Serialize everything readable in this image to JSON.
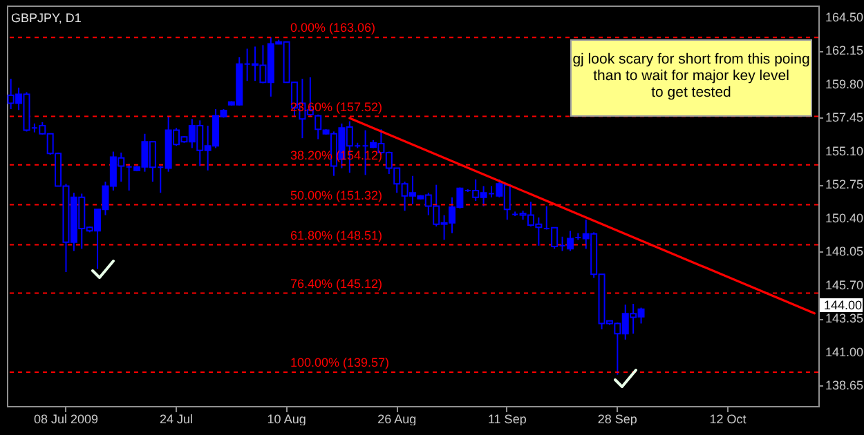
{
  "chart_data": {
    "type": "candlestick",
    "title": "GBPJPY, D1",
    "categories": [
      null,
      null,
      null,
      null,
      null,
      null,
      null,
      "08 Jul 2009",
      null,
      null,
      null,
      null,
      null,
      null,
      null,
      null,
      null,
      null,
      null,
      null,
      null,
      "24 Jul",
      null,
      null,
      null,
      null,
      null,
      null,
      null,
      null,
      null,
      null,
      null,
      null,
      null,
      "10 Aug",
      null,
      null,
      null,
      null,
      null,
      null,
      null,
      null,
      null,
      null,
      null,
      null,
      null,
      "26 Aug",
      null,
      null,
      null,
      null,
      null,
      null,
      null,
      null,
      null,
      null,
      null,
      null,
      null,
      "11 Sep",
      null,
      null,
      null,
      null,
      null,
      null,
      null,
      null,
      null,
      null,
      null,
      null,
      null,
      "28 Sep",
      null,
      null,
      null,
      null,
      null,
      null,
      null,
      null,
      null,
      null,
      null,
      null,
      null,
      "12 Oct",
      null,
      null,
      null,
      null,
      null,
      null,
      null,
      null,
      null,
      null,
      null
    ],
    "color": "#0000ff",
    "ohlc": [
      [
        159.0,
        160.16,
        158.03,
        158.44
      ],
      [
        158.44,
        159.54,
        157.97,
        159.07
      ],
      [
        159.07,
        159.22,
        156.46,
        156.55
      ],
      [
        156.71,
        157.02,
        156.4,
        156.71
      ],
      [
        156.87,
        157.12,
        156.24,
        156.3
      ],
      [
        156.3,
        156.3,
        154.83,
        154.92
      ],
      [
        154.92,
        154.98,
        152.63,
        152.63
      ],
      [
        152.63,
        152.79,
        146.6,
        148.7
      ],
      [
        148.7,
        152.16,
        148.08,
        151.84
      ],
      [
        151.84,
        152.1,
        148.23,
        149.65
      ],
      [
        149.74,
        149.8,
        149.39,
        149.49
      ],
      [
        149.49,
        151.0,
        146.82,
        151.0
      ],
      [
        151.0,
        152.94,
        150.59,
        152.63
      ],
      [
        152.63,
        155.05,
        152.32,
        154.67
      ],
      [
        154.61,
        154.98,
        152.94,
        154.04
      ],
      [
        153.98,
        154.2,
        152.32,
        153.98
      ],
      [
        153.73,
        154.04,
        153.67,
        153.98
      ],
      [
        153.98,
        156.3,
        153.64,
        155.74
      ],
      [
        155.74,
        155.74,
        152.94,
        153.95
      ],
      [
        153.95,
        154.04,
        152.16,
        153.95
      ],
      [
        153.89,
        157.5,
        153.64,
        156.55
      ],
      [
        156.55,
        156.71,
        155.45,
        155.55
      ],
      [
        156.08,
        156.14,
        155.67,
        155.74
      ],
      [
        155.74,
        157.34,
        155.3,
        156.87
      ],
      [
        156.87,
        157.24,
        154.04,
        155.14
      ],
      [
        155.14,
        156.87,
        153.73,
        155.45
      ],
      [
        155.45,
        158.03,
        155.3,
        157.56
      ],
      [
        157.5,
        158.03,
        157.43,
        157.94
      ],
      [
        158.34,
        158.59,
        158.28,
        158.53
      ],
      [
        158.34,
        161.67,
        158.28,
        161.2
      ],
      [
        161.2,
        162.27,
        160.01,
        161.2
      ],
      [
        161.2,
        162.42,
        160.01,
        161.11
      ],
      [
        161.11,
        162.52,
        159.85,
        159.91
      ],
      [
        159.91,
        163.06,
        158.91,
        162.61
      ],
      [
        162.61,
        162.9,
        162.58,
        162.74
      ],
      [
        162.74,
        162.74,
        159.91,
        159.91
      ],
      [
        159.91,
        159.91,
        157.56,
        158.12
      ],
      [
        158.44,
        160.16,
        155.99,
        157.34
      ],
      [
        157.97,
        160.26,
        157.5,
        157.65
      ],
      [
        157.56,
        157.65,
        155.92,
        156.62
      ],
      [
        156.3,
        156.62,
        156.24,
        156.55
      ],
      [
        156.3,
        156.46,
        153.35,
        154.04
      ],
      [
        154.51,
        157.02,
        153.89,
        156.71
      ],
      [
        156.77,
        157.18,
        153.57,
        155.45
      ],
      [
        155.45,
        155.67,
        155.3,
        155.45
      ],
      [
        155.45,
        156.55,
        153.41,
        155.45
      ],
      [
        155.36,
        155.86,
        155.3,
        155.67
      ],
      [
        155.61,
        156.62,
        154.83,
        154.98
      ],
      [
        154.98,
        155.05,
        153.48,
        153.89
      ],
      [
        153.89,
        153.89,
        152.16,
        152.79
      ],
      [
        152.79,
        152.94,
        150.9,
        151.94
      ],
      [
        151.94,
        153.35,
        151.37,
        152.16
      ],
      [
        151.75,
        152.0,
        151.69,
        151.94
      ],
      [
        152.0,
        152.16,
        150.59,
        151.22
      ],
      [
        151.22,
        152.72,
        149.8,
        149.96
      ],
      [
        149.96,
        150.59,
        148.86,
        150.05
      ],
      [
        150.05,
        151.84,
        149.33,
        151.15
      ],
      [
        151.15,
        152.53,
        151.06,
        152.47
      ],
      [
        152.32,
        152.41,
        152.22,
        152.32
      ],
      [
        152.32,
        153.1,
        151.59,
        151.84
      ],
      [
        151.84,
        152.63,
        151.22,
        152.16
      ],
      [
        152.1,
        152.63,
        151.84,
        152.1
      ],
      [
        151.94,
        153.1,
        151.84,
        152.79
      ],
      [
        152.72,
        152.72,
        150.27,
        151.0
      ],
      [
        150.65,
        150.84,
        150.52,
        150.65
      ],
      [
        150.71,
        150.9,
        150.27,
        150.59
      ],
      [
        150.59,
        151.53,
        149.8,
        149.89
      ],
      [
        149.96,
        150.43,
        148.45,
        149.74
      ],
      [
        149.65,
        151.22,
        149.58,
        149.65
      ],
      [
        149.71,
        149.71,
        148.23,
        148.39
      ],
      [
        148.45,
        149.08,
        148.08,
        148.45
      ],
      [
        148.23,
        149.49,
        148.08,
        148.95
      ],
      [
        149.02,
        149.33,
        148.86,
        149.02
      ],
      [
        148.95,
        150.27,
        148.23,
        149.27
      ],
      [
        149.27,
        149.39,
        146.19,
        146.44
      ],
      [
        146.44,
        146.44,
        142.58,
        142.99
      ],
      [
        143.17,
        143.21,
        142.89,
        142.99
      ],
      [
        142.99,
        143.05,
        139.4,
        142.27
      ],
      [
        142.27,
        144.31,
        141.86,
        143.68
      ],
      [
        143.68,
        144.37,
        142.27,
        143.43
      ],
      [
        143.46,
        144.1,
        142.99,
        144.0
      ],
      null,
      null,
      null,
      null,
      null,
      null,
      null,
      null,
      null,
      null,
      null,
      null,
      null,
      null,
      null,
      null,
      null,
      null,
      null,
      null,
      null,
      null
    ],
    "series": [
      {
        "type": "line",
        "color": "#ff0000",
        "values": [
          null,
          null,
          null,
          null,
          null,
          null,
          null,
          null,
          null,
          null,
          null,
          null,
          null,
          null,
          null,
          null,
          null,
          null,
          null,
          null,
          null,
          null,
          null,
          null,
          null,
          null,
          null,
          null,
          null,
          null,
          null,
          null,
          null,
          null,
          null,
          null,
          null,
          null,
          null,
          null,
          null,
          null,
          null,
          157.4,
          null,
          null,
          null,
          null,
          null,
          null,
          null,
          null,
          null,
          null,
          null,
          null,
          null,
          null,
          null,
          null,
          null,
          null,
          null,
          null,
          null,
          null,
          null,
          null,
          null,
          null,
          null,
          null,
          null,
          null,
          null,
          null,
          null,
          null,
          null,
          null,
          null,
          null,
          null,
          null,
          null,
          null,
          null,
          null,
          null,
          null,
          null,
          null,
          null,
          null,
          null,
          null,
          null,
          null,
          null,
          null,
          null,
          null,
          143.7
        ]
      }
    ],
    "ylim": [
      137.2,
      165.3
    ],
    "yticks": [
      {
        "value": 138.65,
        "label": "138.65"
      },
      {
        "value": 141,
        "label": "141.00"
      },
      {
        "value": 143.35,
        "label": "143.35"
      },
      {
        "value": 145.7,
        "label": "145.70"
      },
      {
        "value": 148.05,
        "label": "148.05"
      },
      {
        "value": 150.4,
        "label": "150.40"
      },
      {
        "value": 152.75,
        "label": "152.75"
      },
      {
        "value": 155.1,
        "label": "155.10"
      },
      {
        "value": 157.45,
        "label": "157.45"
      },
      {
        "value": 159.8,
        "label": "159.80"
      },
      {
        "value": 162.15,
        "label": "162.15"
      },
      {
        "value": 164.5,
        "label": "164.50"
      }
    ],
    "ref_lines": [
      {
        "axis": "y",
        "value": 163.06,
        "label": "0.00% (163.06)",
        "color": "#ff0000",
        "line_style": "dashed"
      },
      {
        "axis": "y",
        "value": 157.52,
        "label": "23.60% (157.52)",
        "color": "#ff0000",
        "line_style": "dashed"
      },
      {
        "axis": "y",
        "value": 154.12,
        "label": "38.20% (154.12)",
        "color": "#ff0000",
        "line_style": "dashed"
      },
      {
        "axis": "y",
        "value": 151.32,
        "label": "50.00% (151.32)",
        "color": "#ff0000",
        "line_style": "dashed"
      },
      {
        "axis": "y",
        "value": 148.51,
        "label": "61.80% (148.51)",
        "color": "#ff0000",
        "line_style": "dashed"
      },
      {
        "axis": "y",
        "value": 145.12,
        "label": "76.40% (145.12)",
        "color": "#ff0000",
        "line_style": "dashed"
      },
      {
        "axis": "y",
        "value": 139.57,
        "label": "100.00% (139.57)",
        "color": "#ff0000",
        "line_style": "dashed"
      }
    ],
    "annotations": [
      "gj look scary for short from this poing\nthan to wait for major key level\nto get tested",
      "144.00"
    ]
  }
}
